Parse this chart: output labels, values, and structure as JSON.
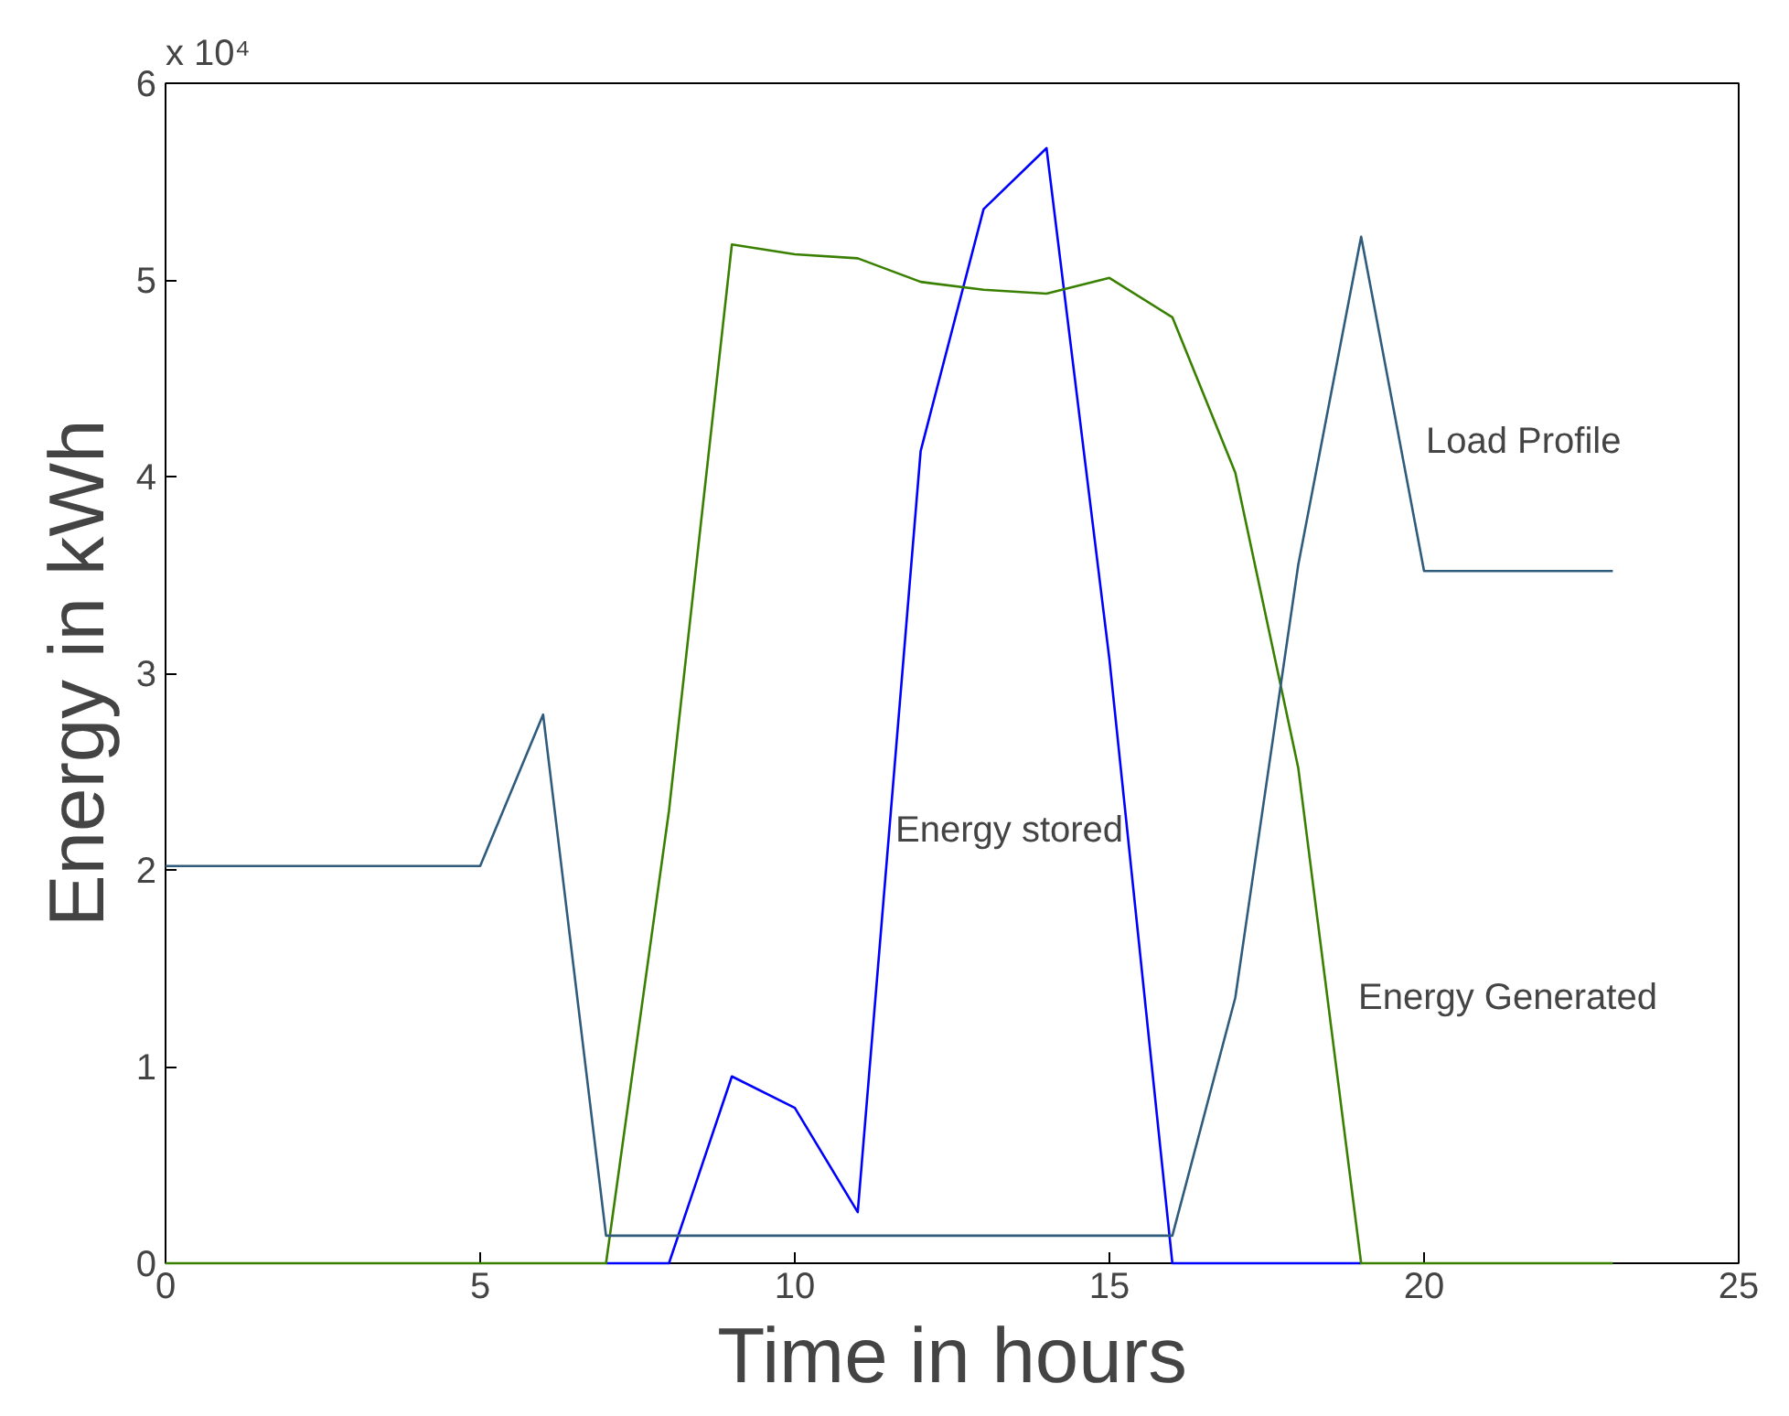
{
  "chart_data": {
    "type": "line",
    "xlabel": "Time in hours",
    "ylabel": "Energy in kWh",
    "x": [
      0,
      1,
      2,
      3,
      4,
      5,
      6,
      7,
      8,
      9,
      10,
      11,
      12,
      13,
      14,
      15,
      16,
      17,
      18,
      19,
      20,
      21,
      22,
      23
    ],
    "series": [
      {
        "color": "#0000ff",
        "values": [
          null,
          null,
          null,
          null,
          null,
          null,
          null,
          0,
          0,
          0.95,
          0.79,
          0.26,
          4.13,
          5.36,
          5.67,
          3.07,
          0,
          0,
          0,
          0,
          null,
          null,
          null,
          null
        ]
      },
      {
        "color": "#3a8000",
        "values": [
          0,
          0,
          0,
          0,
          0,
          0,
          0,
          0,
          2.3,
          5.18,
          5.13,
          5.11,
          4.99,
          4.95,
          4.93,
          5.01,
          4.81,
          4.02,
          2.52,
          0,
          0,
          0,
          0,
          0
        ]
      },
      {
        "color": "#2f5b7c",
        "values": [
          2.02,
          2.02,
          2.02,
          2.02,
          2.02,
          2.02,
          2.79,
          0.14,
          0.14,
          0.14,
          0.14,
          0.14,
          0.14,
          0.14,
          0.14,
          0.14,
          0.14,
          1.35,
          3.55,
          5.22,
          3.52,
          3.52,
          3.52,
          3.52
        ]
      }
    ],
    "xlim": [
      0,
      25
    ],
    "xticks": [
      0,
      5,
      10,
      15,
      20,
      25
    ],
    "ylim": [
      0,
      6
    ],
    "yticks": [
      0,
      1,
      2,
      3,
      4,
      5,
      6
    ],
    "annotations": [
      "x 10⁴",
      "Load Profile",
      {
        "text": "Energy stored",
        "x": 11.6,
        "y": 2.2
      },
      "Energy Generated"
    ],
    "grid": false,
    "line_style": "solid"
  }
}
